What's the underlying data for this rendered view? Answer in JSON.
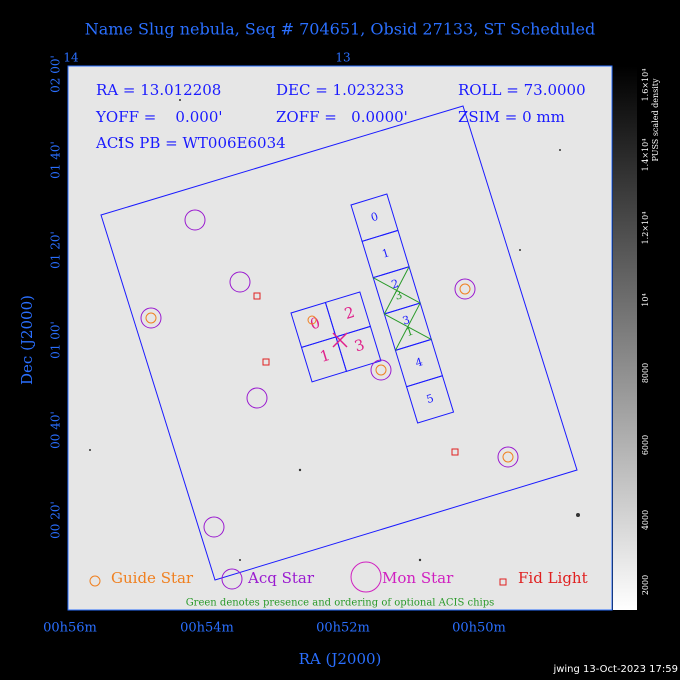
{
  "title": "Name Slug nebula, Seq # 704651, Obsid 27133, ST Scheduled",
  "info": [
    "RA = 13.012208",
    "DEC = 1.023233",
    "ROLL = 73.0000",
    "YOFF =    0.000'",
    "ZOFF =   0.0000'",
    "ZSIM = 0 mm",
    "ACIS PB = WT006E6034"
  ],
  "top_axis": [
    "14",
    "13"
  ],
  "x_axis": {
    "label": "RA (J2000)",
    "ticks": [
      "00h56m",
      "00h54m",
      "00h52m",
      "00h50m"
    ]
  },
  "y_axis": {
    "label": "Dec (J2000)",
    "ticks": [
      "02 00'",
      "01 40'",
      "01 20'",
      "01 00'",
      "00 40'",
      "00 20'"
    ]
  },
  "colorbar": {
    "label": "PUSS scaled density",
    "ticks": [
      "2000",
      "4000",
      "6000",
      "8000",
      "10⁴",
      "1.2×10⁴",
      "1.4×10⁴",
      "1.6×10⁴"
    ]
  },
  "acis_s": [
    "0",
    "1",
    "2",
    "3",
    "4",
    "5"
  ],
  "acis_s_optional": [
    "3",
    "1"
  ],
  "acis_i": [
    "0",
    "2",
    "1",
    "3"
  ],
  "legend": [
    "Guide Star",
    "Acq Star",
    "Mon Star",
    "Fid Light"
  ],
  "note": "Green denotes presence and ordering of optional ACIS chips",
  "footer": "jwing 13-Oct-2023 17:59"
}
